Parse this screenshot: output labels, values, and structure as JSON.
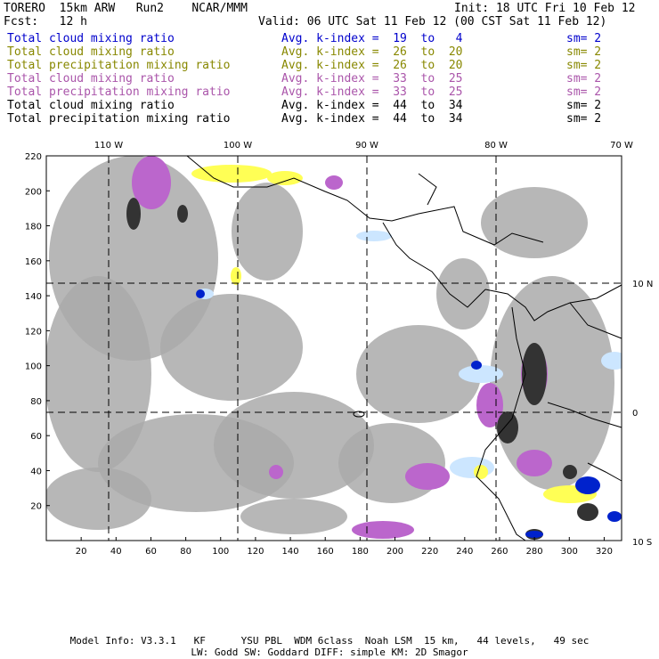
{
  "header": {
    "title": "TORERO  15km ARW   Run2    NCAR/MMM",
    "init": "Init: 18 UTC Fri 10 Feb 12",
    "fcst": "Fcst:   12 h",
    "valid": "Valid: 06 UTC Sat 11 Feb 12 (00 CST Sat 11 Feb 12)"
  },
  "legend": [
    {
      "label": "Total cloud mixing ratio",
      "kindex": "Avg. k-index =  19  to   4",
      "sm": "sm= 2",
      "color": "#0000cc"
    },
    {
      "label": "Total cloud mixing ratio",
      "kindex": "Avg. k-index =  26  to  20",
      "sm": "sm= 2",
      "color": "#888800"
    },
    {
      "label": "Total precipitation mixing ratio",
      "kindex": "Avg. k-index =  26  to  20",
      "sm": "sm= 2",
      "color": "#888800"
    },
    {
      "label": "Total cloud mixing ratio",
      "kindex": "Avg. k-index =  33  to  25",
      "sm": "sm= 2",
      "color": "#aa55aa"
    },
    {
      "label": "Total precipitation mixing ratio",
      "kindex": "Avg. k-index =  33  to  25",
      "sm": "sm= 2",
      "color": "#aa55aa"
    },
    {
      "label": "Total cloud mixing ratio",
      "kindex": "Avg. k-index =  44  to  34",
      "sm": "sm= 2",
      "color": "#000000"
    },
    {
      "label": "Total precipitation mixing ratio",
      "kindex": "Avg. k-index =  44  to  34",
      "sm": "sm= 2",
      "color": "#000000"
    }
  ],
  "map": {
    "lon_labels": [
      "110 W",
      "100 W",
      "90 W",
      "80 W",
      "70 W"
    ],
    "lat_labels": [
      "10 N",
      "0",
      "10 S"
    ],
    "x_ticks": [
      "20",
      "40",
      "60",
      "80",
      "100",
      "120",
      "140",
      "160",
      "180",
      "200",
      "220",
      "240",
      "260",
      "280",
      "300",
      "320"
    ],
    "y_ticks": [
      "20",
      "40",
      "60",
      "80",
      "100",
      "120",
      "140",
      "160",
      "180",
      "200",
      "220"
    ],
    "colors": {
      "cloud": "#aaaaaa",
      "dark": "#333333",
      "yellow": "#ffff55",
      "purple": "#bb66cc",
      "blue": "#0022cc",
      "lightblue": "#cce6ff"
    }
  },
  "footer": {
    "line1": "Model Info: V3.3.1   KF      YSU PBL  WDM 6class  Noah LSM  15 km,   44 levels,   49 sec",
    "line2": "LW: Godd SW: Goddard DIFF: simple KM: 2D Smagor"
  }
}
